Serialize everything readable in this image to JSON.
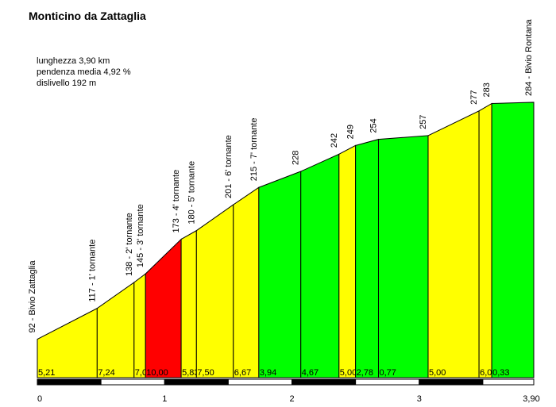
{
  "title": "Monticino da Zattaglia",
  "stats": {
    "length": "lunghezza 3,90 km",
    "avg_grade": "pendenza media 4,92 %",
    "elevation_gain": "dislivello 192 m"
  },
  "chart_data": {
    "type": "area",
    "title": "Monticino da Zattaglia",
    "xlabel": "",
    "ylabel": "",
    "xlim": [
      0,
      3.9
    ],
    "ylim": [
      0,
      300
    ],
    "x_ticks": [
      0,
      1,
      2,
      3,
      3.9
    ],
    "x_tick_labels": [
      "0",
      "1",
      "2",
      "3",
      "3,90"
    ],
    "points": [
      {
        "km": 0.0,
        "elev": 92,
        "label": "92 - Bivio Zattaglia"
      },
      {
        "km": 0.47,
        "elev": 117,
        "label": "117 - 1' tornante"
      },
      {
        "km": 0.76,
        "elev": 138,
        "label": "138 - 2' tornante"
      },
      {
        "km": 0.85,
        "elev": 145,
        "label": "145 - 3' tornante"
      },
      {
        "km": 1.13,
        "elev": 173,
        "label": "173 - 4' tornante"
      },
      {
        "km": 1.25,
        "elev": 180,
        "label": "180 - 5' tornante"
      },
      {
        "km": 1.54,
        "elev": 201,
        "label": "201 - 6' tornante"
      },
      {
        "km": 1.74,
        "elev": 215,
        "label": "215 - 7' tornante"
      },
      {
        "km": 2.07,
        "elev": 228,
        "label": "228"
      },
      {
        "km": 2.37,
        "elev": 242,
        "label": "242"
      },
      {
        "km": 2.5,
        "elev": 249,
        "label": "249"
      },
      {
        "km": 2.68,
        "elev": 254,
        "label": "254"
      },
      {
        "km": 3.07,
        "elev": 257,
        "label": "257"
      },
      {
        "km": 3.47,
        "elev": 277,
        "label": "277"
      },
      {
        "km": 3.57,
        "elev": 283,
        "label": "283"
      },
      {
        "km": 3.9,
        "elev": 284,
        "label": "284 - Bivio Rontana"
      }
    ],
    "segments": [
      {
        "grade": "5,21",
        "color": "#ffff00"
      },
      {
        "grade": "7,24",
        "color": "#ffff00"
      },
      {
        "grade": "7,00",
        "color": "#ffff00"
      },
      {
        "grade": "10,00",
        "color": "#ff0000"
      },
      {
        "grade": "5,83",
        "color": "#ffff00"
      },
      {
        "grade": "7,50",
        "color": "#ffff00"
      },
      {
        "grade": "6,67",
        "color": "#ffff00"
      },
      {
        "grade": "3,94",
        "color": "#00ff00"
      },
      {
        "grade": "4,67",
        "color": "#00ff00"
      },
      {
        "grade": "5,00",
        "color": "#ffff00"
      },
      {
        "grade": "2,78",
        "color": "#00ff00"
      },
      {
        "grade": "0,77",
        "color": "#00ff00"
      },
      {
        "grade": "5,00",
        "color": "#ffff00"
      },
      {
        "grade": "6,00",
        "color": "#ffff00"
      },
      {
        "grade": "0,33",
        "color": "#00ff00"
      }
    ],
    "km_bar_colors": [
      "#000000",
      "#ffffff"
    ]
  }
}
